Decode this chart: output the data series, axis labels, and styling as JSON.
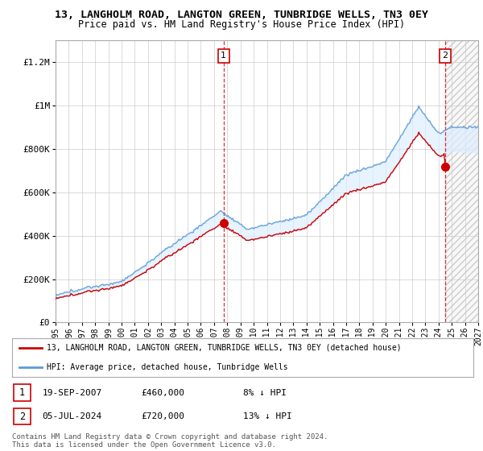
{
  "title_line1": "13, LANGHOLM ROAD, LANGTON GREEN, TUNBRIDGE WELLS, TN3 0EY",
  "title_line2": "Price paid vs. HM Land Registry's House Price Index (HPI)",
  "y_ticks": [
    0,
    200000,
    400000,
    600000,
    800000,
    1000000,
    1200000
  ],
  "ylim": [
    0,
    1300000
  ],
  "x_start_year": 1995,
  "x_end_year": 2027,
  "hpi_color": "#5b9bd5",
  "price_color": "#cc0000",
  "transaction1_date": 2007.72,
  "transaction1_price": 460000,
  "transaction2_date": 2024.51,
  "transaction2_price": 720000,
  "legend_property": "13, LANGHOLM ROAD, LANGTON GREEN, TUNBRIDGE WELLS, TN3 0EY (detached house)",
  "legend_hpi": "HPI: Average price, detached house, Tunbridge Wells",
  "annotation1_date": "19-SEP-2007",
  "annotation1_price": "£460,000",
  "annotation1_pct": "8% ↓ HPI",
  "annotation2_date": "05-JUL-2024",
  "annotation2_price": "£720,000",
  "annotation2_pct": "13% ↓ HPI",
  "footer": "Contains HM Land Registry data © Crown copyright and database right 2024.\nThis data is licensed under the Open Government Licence v3.0.",
  "bg_color": "#ffffff",
  "grid_color": "#cccccc",
  "fill_color": "#ddeeff"
}
